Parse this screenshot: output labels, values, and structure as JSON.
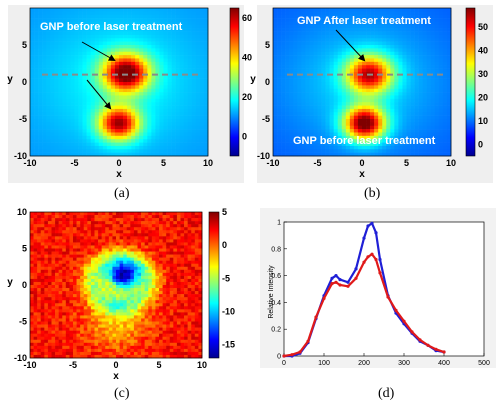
{
  "colors": {
    "jet": [
      "#00008f",
      "#0000ff",
      "#0080ff",
      "#00ffff",
      "#80ff80",
      "#ffff00",
      "#ff8000",
      "#ff0000",
      "#800000"
    ],
    "blue_series": "#1f1fd6",
    "red_series": "#e01a1a",
    "dashed_line": "#8a8a8a",
    "annotation_text": "#ffffff"
  },
  "chart_data": [
    {
      "panel": "a",
      "type": "heatmap",
      "caption": "(a)",
      "xlabel": "x",
      "ylabel": "y",
      "xlim": [
        -10,
        10
      ],
      "ylim": [
        -10,
        10
      ],
      "xticks": [
        "-10",
        "-5",
        "0",
        "5",
        "10"
      ],
      "yticks": [
        "5",
        "0",
        "-5",
        "-10"
      ],
      "colorbar_ticks": [
        "60",
        "40",
        "20",
        "0"
      ],
      "colorbar_range": [
        -10,
        65
      ],
      "annotation": "GNP before laser treatment",
      "spots": [
        {
          "x": 0.8,
          "y": 1.2,
          "peak": 64,
          "sigma": 1.8
        },
        {
          "x": 0.0,
          "y": -5.6,
          "peak": 58,
          "sigma": 1.6
        }
      ],
      "background": 10,
      "profile_line_y": 1.0
    },
    {
      "panel": "b",
      "type": "heatmap",
      "caption": "(b)",
      "xlabel": "x",
      "ylabel": "y",
      "xlim": [
        -10,
        10
      ],
      "ylim": [
        -10,
        10
      ],
      "xticks": [
        "-10",
        "-5",
        "0",
        "5",
        "10"
      ],
      "yticks": [
        "5",
        "0",
        "-5",
        "-10"
      ],
      "colorbar_ticks": [
        "50",
        "40",
        "30",
        "20",
        "10",
        "0"
      ],
      "colorbar_range": [
        -5,
        58
      ],
      "annotations": [
        "GNP After laser treatment",
        "GNP before laser treatment"
      ],
      "spots": [
        {
          "x": 0.8,
          "y": 1.0,
          "peak": 48,
          "sigma": 1.8
        },
        {
          "x": 0.3,
          "y": -5.6,
          "peak": 56,
          "sigma": 1.6
        }
      ],
      "background": 8,
      "profile_line_y": 1.0
    },
    {
      "panel": "c",
      "type": "heatmap",
      "caption": "(c)",
      "xlabel": "x",
      "ylabel": "y",
      "xlim": [
        -10,
        10
      ],
      "ylim": [
        -10,
        10
      ],
      "xticks": [
        "-10",
        "-5",
        "0",
        "5",
        "10"
      ],
      "yticks": [
        "10",
        "5",
        "0",
        "-5",
        "-10"
      ],
      "colorbar_ticks": [
        "5",
        "0",
        "-5",
        "-10",
        "-15"
      ],
      "colorbar_range": [
        -17,
        5
      ],
      "dip": {
        "x": 0.8,
        "y": 1.3,
        "value": -16,
        "sigma": 1.3
      },
      "ring": {
        "x": 0.5,
        "y": 0.5,
        "radius": 3.2,
        "value": -6
      },
      "lower_lobe": {
        "x": 0.0,
        "y": -5.0,
        "value": -4,
        "sigma": 2.5
      },
      "background": 2
    },
    {
      "panel": "d",
      "type": "line",
      "caption": "(d)",
      "ylabel": "Relative Intensity",
      "xlabel": "",
      "xlim": [
        0,
        500
      ],
      "ylim": [
        0,
        1
      ],
      "xticks": [
        "0",
        "100",
        "200",
        "300",
        "400",
        "500"
      ],
      "yticks": [
        "0",
        "0.2",
        "0.4",
        "0.6",
        "0.8",
        "1"
      ],
      "x": [
        0,
        20,
        40,
        60,
        80,
        100,
        120,
        130,
        140,
        160,
        180,
        200,
        210,
        220,
        230,
        240,
        260,
        280,
        300,
        320,
        340,
        360,
        380,
        400
      ],
      "series": [
        {
          "color": "blue",
          "values": [
            0.0,
            0.0,
            0.02,
            0.1,
            0.28,
            0.45,
            0.58,
            0.6,
            0.57,
            0.55,
            0.65,
            0.88,
            0.97,
            0.99,
            0.92,
            0.72,
            0.45,
            0.32,
            0.24,
            0.17,
            0.11,
            0.08,
            0.04,
            0.03
          ]
        },
        {
          "color": "red",
          "values": [
            0.0,
            0.01,
            0.03,
            0.11,
            0.29,
            0.43,
            0.54,
            0.55,
            0.53,
            0.52,
            0.58,
            0.7,
            0.74,
            0.76,
            0.72,
            0.62,
            0.44,
            0.34,
            0.26,
            0.18,
            0.12,
            0.08,
            0.05,
            0.03
          ]
        }
      ]
    }
  ]
}
